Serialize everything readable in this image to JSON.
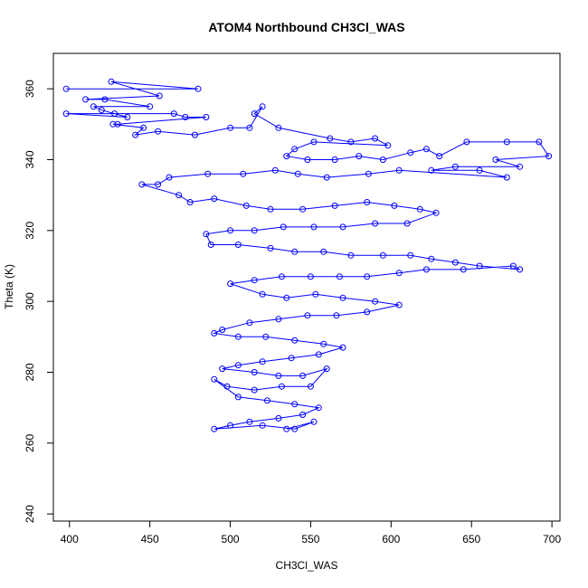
{
  "chart_data": {
    "type": "line",
    "title": "ATOM4 Northbound CH3Cl_WAS",
    "xlabel": "CH3Cl_WAS",
    "ylabel": "Theta (K)",
    "xlim": [
      390,
      705
    ],
    "ylim": [
      238,
      370
    ],
    "xticks": [
      400,
      450,
      500,
      550,
      600,
      650,
      700
    ],
    "yticks": [
      240,
      260,
      280,
      300,
      320,
      340,
      360
    ],
    "grid": false,
    "marker": "open-circle",
    "color": "#0000ff",
    "series": [
      {
        "values": [
          [
            398,
            360
          ],
          [
            480,
            360
          ],
          [
            426,
            362
          ],
          [
            456,
            358
          ],
          [
            410,
            357
          ],
          [
            422,
            357
          ],
          [
            450,
            355
          ],
          [
            415,
            355
          ],
          [
            420,
            354
          ],
          [
            428,
            353
          ],
          [
            436,
            352
          ],
          [
            398,
            353
          ],
          [
            465,
            353
          ],
          [
            472,
            352
          ],
          [
            485,
            352
          ],
          [
            430,
            350
          ],
          [
            427,
            350
          ],
          [
            446,
            349
          ],
          [
            441,
            347
          ],
          [
            455,
            348
          ],
          [
            478,
            347
          ],
          [
            500,
            349
          ],
          [
            512,
            349
          ],
          [
            520,
            355
          ],
          [
            515,
            353
          ],
          [
            530,
            349
          ],
          [
            562,
            346
          ],
          [
            575,
            345
          ],
          [
            590,
            346
          ],
          [
            598,
            344
          ],
          [
            552,
            345
          ],
          [
            540,
            343
          ],
          [
            535,
            341
          ],
          [
            548,
            340
          ],
          [
            565,
            340
          ],
          [
            580,
            341
          ],
          [
            595,
            340
          ],
          [
            612,
            342
          ],
          [
            622,
            343
          ],
          [
            630,
            341
          ],
          [
            647,
            345
          ],
          [
            672,
            345
          ],
          [
            692,
            345
          ],
          [
            698,
            341
          ],
          [
            665,
            340
          ],
          [
            680,
            338
          ],
          [
            640,
            338
          ],
          [
            625,
            337
          ],
          [
            655,
            337
          ],
          [
            672,
            335
          ],
          [
            605,
            337
          ],
          [
            586,
            336
          ],
          [
            560,
            335
          ],
          [
            542,
            336
          ],
          [
            528,
            337
          ],
          [
            508,
            336
          ],
          [
            486,
            336
          ],
          [
            462,
            335
          ],
          [
            455,
            333
          ],
          [
            445,
            333
          ],
          [
            468,
            330
          ],
          [
            475,
            328
          ],
          [
            490,
            329
          ],
          [
            510,
            327
          ],
          [
            525,
            326
          ],
          [
            545,
            326
          ],
          [
            565,
            327
          ],
          [
            585,
            328
          ],
          [
            602,
            327
          ],
          [
            618,
            326
          ],
          [
            628,
            325
          ],
          [
            610,
            322
          ],
          [
            590,
            322
          ],
          [
            570,
            321
          ],
          [
            552,
            321
          ],
          [
            533,
            321
          ],
          [
            515,
            320
          ],
          [
            500,
            320
          ],
          [
            485,
            319
          ],
          [
            488,
            316
          ],
          [
            505,
            316
          ],
          [
            525,
            315
          ],
          [
            540,
            314
          ],
          [
            558,
            314
          ],
          [
            575,
            313
          ],
          [
            595,
            313
          ],
          [
            612,
            313
          ],
          [
            625,
            312
          ],
          [
            640,
            311
          ],
          [
            655,
            310
          ],
          [
            680,
            309
          ],
          [
            676,
            310
          ],
          [
            645,
            309
          ],
          [
            622,
            309
          ],
          [
            605,
            308
          ],
          [
            585,
            307
          ],
          [
            568,
            307
          ],
          [
            550,
            307
          ],
          [
            532,
            307
          ],
          [
            515,
            306
          ],
          [
            500,
            305
          ],
          [
            520,
            302
          ],
          [
            535,
            301
          ],
          [
            553,
            302
          ],
          [
            570,
            301
          ],
          [
            590,
            300
          ],
          [
            605,
            299
          ],
          [
            585,
            297
          ],
          [
            566,
            296
          ],
          [
            548,
            296
          ],
          [
            530,
            295
          ],
          [
            512,
            294
          ],
          [
            495,
            292
          ],
          [
            490,
            291
          ],
          [
            505,
            290
          ],
          [
            522,
            290
          ],
          [
            540,
            289
          ],
          [
            558,
            288
          ],
          [
            570,
            287
          ],
          [
            555,
            285
          ],
          [
            538,
            284
          ],
          [
            520,
            283
          ],
          [
            505,
            282
          ],
          [
            495,
            281
          ],
          [
            515,
            280
          ],
          [
            530,
            279
          ],
          [
            545,
            279
          ],
          [
            560,
            281
          ],
          [
            550,
            276
          ],
          [
            532,
            276
          ],
          [
            515,
            275
          ],
          [
            498,
            276
          ],
          [
            490,
            278
          ],
          [
            505,
            273
          ],
          [
            523,
            272
          ],
          [
            540,
            271
          ],
          [
            555,
            270
          ],
          [
            545,
            268
          ],
          [
            530,
            267
          ],
          [
            512,
            266
          ],
          [
            500,
            265
          ],
          [
            490,
            264
          ],
          [
            520,
            265
          ],
          [
            540,
            264
          ],
          [
            552,
            266
          ],
          [
            535,
            264
          ]
        ]
      }
    ]
  }
}
